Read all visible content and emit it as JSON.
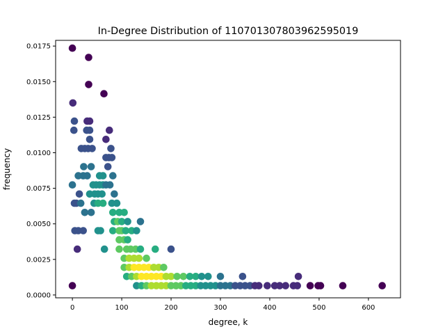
{
  "chart_data": {
    "type": "scatter",
    "title": "In-Degree Distribution of 110701307803962595019",
    "xlabel": "degree, k",
    "ylabel": "frequency",
    "xlim": [
      -34,
      665
    ],
    "ylim": [
      -0.0002,
      0.0179
    ],
    "grid": false,
    "legend": "none",
    "colormap": "viridis",
    "color_encodes": "point density",
    "xticks": [
      0,
      100,
      200,
      300,
      400,
      500,
      600
    ],
    "xtick_labels": [
      "0",
      "100",
      "200",
      "300",
      "400",
      "500",
      "600"
    ],
    "yticks": [
      0.0,
      0.0025,
      0.005,
      0.0075,
      0.01,
      0.0125,
      0.015,
      0.0175
    ],
    "ytick_labels": [
      "0.0000",
      "0.0025",
      "0.0050",
      "0.0075",
      "0.0100",
      "0.0125",
      "0.0150",
      "0.0175"
    ],
    "points": [
      {
        "x": 0,
        "y": 0.01735,
        "c": "#440154"
      },
      {
        "x": 33,
        "y": 0.0167,
        "c": "#440154"
      },
      {
        "x": 33,
        "y": 0.0148,
        "c": "#440154"
      },
      {
        "x": 64,
        "y": 0.01415,
        "c": "#440154"
      },
      {
        "x": 1,
        "y": 0.0135,
        "c": "#472c7a"
      },
      {
        "x": 4,
        "y": 0.01222,
        "c": "#3b528b"
      },
      {
        "x": 30,
        "y": 0.01222,
        "c": "#472c7a"
      },
      {
        "x": 35,
        "y": 0.01222,
        "c": "#472c7a"
      },
      {
        "x": 3,
        "y": 0.01158,
        "c": "#3b528b"
      },
      {
        "x": 29,
        "y": 0.01158,
        "c": "#3b528b"
      },
      {
        "x": 35,
        "y": 0.01158,
        "c": "#3b528b"
      },
      {
        "x": 75,
        "y": 0.01158,
        "c": "#472c7a"
      },
      {
        "x": 35,
        "y": 0.01094,
        "c": "#3b528b"
      },
      {
        "x": 68,
        "y": 0.01094,
        "c": "#472c7a"
      },
      {
        "x": 18,
        "y": 0.0103,
        "c": "#3b528b"
      },
      {
        "x": 25,
        "y": 0.0103,
        "c": "#3b528b"
      },
      {
        "x": 32,
        "y": 0.0103,
        "c": "#3b528b"
      },
      {
        "x": 40,
        "y": 0.0103,
        "c": "#3b528b"
      },
      {
        "x": 78,
        "y": 0.0103,
        "c": "#3b528b"
      },
      {
        "x": 68,
        "y": 0.00966,
        "c": "#3b528b"
      },
      {
        "x": 74,
        "y": 0.00966,
        "c": "#3b528b"
      },
      {
        "x": 80,
        "y": 0.00966,
        "c": "#3b528b"
      },
      {
        "x": 23,
        "y": 0.00902,
        "c": "#2c728e"
      },
      {
        "x": 38,
        "y": 0.00902,
        "c": "#2c728e"
      },
      {
        "x": 72,
        "y": 0.00902,
        "c": "#3b528b"
      },
      {
        "x": 12,
        "y": 0.00838,
        "c": "#2c728e"
      },
      {
        "x": 22,
        "y": 0.00838,
        "c": "#2c728e"
      },
      {
        "x": 30,
        "y": 0.00838,
        "c": "#2c728e"
      },
      {
        "x": 55,
        "y": 0.00838,
        "c": "#21918c"
      },
      {
        "x": 62,
        "y": 0.00838,
        "c": "#21918c"
      },
      {
        "x": 82,
        "y": 0.00838,
        "c": "#2c728e"
      },
      {
        "x": 0,
        "y": 0.00774,
        "c": "#2c728e"
      },
      {
        "x": 42,
        "y": 0.00774,
        "c": "#21918c"
      },
      {
        "x": 48,
        "y": 0.00774,
        "c": "#21918c"
      },
      {
        "x": 55,
        "y": 0.00774,
        "c": "#21918c"
      },
      {
        "x": 62,
        "y": 0.00774,
        "c": "#21918c"
      },
      {
        "x": 68,
        "y": 0.00774,
        "c": "#2c728e"
      },
      {
        "x": 76,
        "y": 0.00774,
        "c": "#2c728e"
      },
      {
        "x": 14,
        "y": 0.0071,
        "c": "#3b528b"
      },
      {
        "x": 35,
        "y": 0.0071,
        "c": "#21918c"
      },
      {
        "x": 45,
        "y": 0.0071,
        "c": "#21918c"
      },
      {
        "x": 52,
        "y": 0.0071,
        "c": "#21918c"
      },
      {
        "x": 60,
        "y": 0.0071,
        "c": "#21918c"
      },
      {
        "x": 85,
        "y": 0.0071,
        "c": "#2c728e"
      },
      {
        "x": 4,
        "y": 0.00645,
        "c": "#3b528b"
      },
      {
        "x": 8,
        "y": 0.00645,
        "c": "#3b528b"
      },
      {
        "x": 17,
        "y": 0.00645,
        "c": "#2c728e"
      },
      {
        "x": 44,
        "y": 0.00645,
        "c": "#21918c"
      },
      {
        "x": 52,
        "y": 0.00645,
        "c": "#27ad81"
      },
      {
        "x": 62,
        "y": 0.00645,
        "c": "#27ad81"
      },
      {
        "x": 80,
        "y": 0.00645,
        "c": "#21918c"
      },
      {
        "x": 90,
        "y": 0.00645,
        "c": "#21918c"
      },
      {
        "x": 25,
        "y": 0.0058,
        "c": "#2c728e"
      },
      {
        "x": 38,
        "y": 0.0058,
        "c": "#2c728e"
      },
      {
        "x": 82,
        "y": 0.0058,
        "c": "#27ad81"
      },
      {
        "x": 95,
        "y": 0.0058,
        "c": "#27ad81"
      },
      {
        "x": 105,
        "y": 0.0058,
        "c": "#27ad81"
      },
      {
        "x": 85,
        "y": 0.00516,
        "c": "#27ad81"
      },
      {
        "x": 92,
        "y": 0.00516,
        "c": "#5ec962"
      },
      {
        "x": 100,
        "y": 0.00516,
        "c": "#27ad81"
      },
      {
        "x": 112,
        "y": 0.00516,
        "c": "#21918c"
      },
      {
        "x": 138,
        "y": 0.00516,
        "c": "#2c728e"
      },
      {
        "x": 5,
        "y": 0.00452,
        "c": "#3b528b"
      },
      {
        "x": 12,
        "y": 0.00452,
        "c": "#3b528b"
      },
      {
        "x": 22,
        "y": 0.00452,
        "c": "#3b528b"
      },
      {
        "x": 52,
        "y": 0.00452,
        "c": "#21918c"
      },
      {
        "x": 57,
        "y": 0.00452,
        "c": "#21918c"
      },
      {
        "x": 82,
        "y": 0.00452,
        "c": "#27ad81"
      },
      {
        "x": 95,
        "y": 0.00452,
        "c": "#5ec962"
      },
      {
        "x": 100,
        "y": 0.00452,
        "c": "#5ec962"
      },
      {
        "x": 108,
        "y": 0.00452,
        "c": "#27ad81"
      },
      {
        "x": 120,
        "y": 0.00452,
        "c": "#27ad81"
      },
      {
        "x": 130,
        "y": 0.00452,
        "c": "#21918c"
      },
      {
        "x": 95,
        "y": 0.00388,
        "c": "#5ec962"
      },
      {
        "x": 105,
        "y": 0.00388,
        "c": "#5ec962"
      },
      {
        "x": 112,
        "y": 0.00388,
        "c": "#27ad81"
      },
      {
        "x": 10,
        "y": 0.00322,
        "c": "#472c7a"
      },
      {
        "x": 65,
        "y": 0.00322,
        "c": "#21918c"
      },
      {
        "x": 95,
        "y": 0.00322,
        "c": "#5ec962"
      },
      {
        "x": 110,
        "y": 0.00322,
        "c": "#5ec962"
      },
      {
        "x": 118,
        "y": 0.00322,
        "c": "#5ec962"
      },
      {
        "x": 128,
        "y": 0.00322,
        "c": "#5ec962"
      },
      {
        "x": 138,
        "y": 0.00322,
        "c": "#27ad81"
      },
      {
        "x": 168,
        "y": 0.00322,
        "c": "#27ad81"
      },
      {
        "x": 200,
        "y": 0.00322,
        "c": "#3b528b"
      },
      {
        "x": 105,
        "y": 0.00258,
        "c": "#5ec962"
      },
      {
        "x": 115,
        "y": 0.00258,
        "c": "#addc30"
      },
      {
        "x": 125,
        "y": 0.00258,
        "c": "#addc30"
      },
      {
        "x": 135,
        "y": 0.00258,
        "c": "#addc30"
      },
      {
        "x": 150,
        "y": 0.00258,
        "c": "#5ec962"
      },
      {
        "x": 105,
        "y": 0.00194,
        "c": "#5ec962"
      },
      {
        "x": 115,
        "y": 0.00194,
        "c": "#addc30"
      },
      {
        "x": 125,
        "y": 0.00194,
        "c": "#fde725"
      },
      {
        "x": 135,
        "y": 0.00194,
        "c": "#fde725"
      },
      {
        "x": 145,
        "y": 0.00194,
        "c": "#fde725"
      },
      {
        "x": 155,
        "y": 0.00194,
        "c": "#fde725"
      },
      {
        "x": 165,
        "y": 0.00194,
        "c": "#addc30"
      },
      {
        "x": 175,
        "y": 0.00194,
        "c": "#addc30"
      },
      {
        "x": 185,
        "y": 0.00194,
        "c": "#5ec962"
      },
      {
        "x": 110,
        "y": 0.0013,
        "c": "#27ad81"
      },
      {
        "x": 120,
        "y": 0.0013,
        "c": "#5ec962"
      },
      {
        "x": 130,
        "y": 0.0013,
        "c": "#addc30"
      },
      {
        "x": 140,
        "y": 0.0013,
        "c": "#fde725"
      },
      {
        "x": 150,
        "y": 0.0013,
        "c": "#fde725"
      },
      {
        "x": 160,
        "y": 0.0013,
        "c": "#fde725"
      },
      {
        "x": 170,
        "y": 0.0013,
        "c": "#fde725"
      },
      {
        "x": 180,
        "y": 0.0013,
        "c": "#fde725"
      },
      {
        "x": 190,
        "y": 0.0013,
        "c": "#addc30"
      },
      {
        "x": 200,
        "y": 0.0013,
        "c": "#addc30"
      },
      {
        "x": 212,
        "y": 0.0013,
        "c": "#5ec962"
      },
      {
        "x": 225,
        "y": 0.0013,
        "c": "#5ec962"
      },
      {
        "x": 238,
        "y": 0.0013,
        "c": "#27ad81"
      },
      {
        "x": 250,
        "y": 0.0013,
        "c": "#27ad81"
      },
      {
        "x": 262,
        "y": 0.0013,
        "c": "#21918c"
      },
      {
        "x": 275,
        "y": 0.0013,
        "c": "#21918c"
      },
      {
        "x": 300,
        "y": 0.0013,
        "c": "#2c728e"
      },
      {
        "x": 345,
        "y": 0.0013,
        "c": "#3b528b"
      },
      {
        "x": 458,
        "y": 0.0013,
        "c": "#472c7a"
      },
      {
        "x": 0,
        "y": 0.00065,
        "c": "#440154"
      },
      {
        "x": 130,
        "y": 0.00065,
        "c": "#21918c"
      },
      {
        "x": 140,
        "y": 0.00065,
        "c": "#27ad81"
      },
      {
        "x": 150,
        "y": 0.00065,
        "c": "#5ec962"
      },
      {
        "x": 160,
        "y": 0.00065,
        "c": "#addc30"
      },
      {
        "x": 170,
        "y": 0.00065,
        "c": "#addc30"
      },
      {
        "x": 180,
        "y": 0.00065,
        "c": "#addc30"
      },
      {
        "x": 190,
        "y": 0.00065,
        "c": "#addc30"
      },
      {
        "x": 200,
        "y": 0.00065,
        "c": "#5ec962"
      },
      {
        "x": 210,
        "y": 0.00065,
        "c": "#5ec962"
      },
      {
        "x": 220,
        "y": 0.00065,
        "c": "#5ec962"
      },
      {
        "x": 230,
        "y": 0.00065,
        "c": "#27ad81"
      },
      {
        "x": 240,
        "y": 0.00065,
        "c": "#27ad81"
      },
      {
        "x": 250,
        "y": 0.00065,
        "c": "#27ad81"
      },
      {
        "x": 260,
        "y": 0.00065,
        "c": "#21918c"
      },
      {
        "x": 270,
        "y": 0.00065,
        "c": "#21918c"
      },
      {
        "x": 280,
        "y": 0.00065,
        "c": "#21918c"
      },
      {
        "x": 290,
        "y": 0.00065,
        "c": "#21918c"
      },
      {
        "x": 300,
        "y": 0.00065,
        "c": "#2c728e"
      },
      {
        "x": 310,
        "y": 0.00065,
        "c": "#2c728e"
      },
      {
        "x": 320,
        "y": 0.00065,
        "c": "#2c728e"
      },
      {
        "x": 330,
        "y": 0.00065,
        "c": "#3b528b"
      },
      {
        "x": 340,
        "y": 0.00065,
        "c": "#3b528b"
      },
      {
        "x": 350,
        "y": 0.00065,
        "c": "#3b528b"
      },
      {
        "x": 360,
        "y": 0.00065,
        "c": "#3b528b"
      },
      {
        "x": 370,
        "y": 0.00065,
        "c": "#472c7a"
      },
      {
        "x": 378,
        "y": 0.00065,
        "c": "#472c7a"
      },
      {
        "x": 395,
        "y": 0.00065,
        "c": "#472c7a"
      },
      {
        "x": 410,
        "y": 0.00065,
        "c": "#472c7a"
      },
      {
        "x": 420,
        "y": 0.00065,
        "c": "#472c7a"
      },
      {
        "x": 432,
        "y": 0.00065,
        "c": "#472c7a"
      },
      {
        "x": 448,
        "y": 0.00065,
        "c": "#472c7a"
      },
      {
        "x": 456,
        "y": 0.00065,
        "c": "#472c7a"
      },
      {
        "x": 482,
        "y": 0.00065,
        "c": "#440154"
      },
      {
        "x": 498,
        "y": 0.00065,
        "c": "#440154"
      },
      {
        "x": 503,
        "y": 0.00065,
        "c": "#440154"
      },
      {
        "x": 548,
        "y": 0.00065,
        "c": "#440154"
      },
      {
        "x": 628,
        "y": 0.00065,
        "c": "#440154"
      }
    ]
  }
}
